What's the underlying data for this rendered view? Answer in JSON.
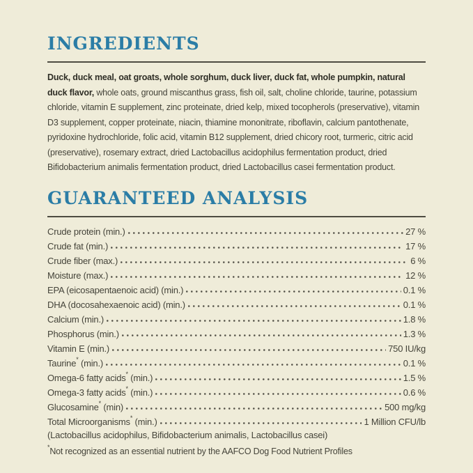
{
  "page": {
    "background_color": "#efecd9",
    "accent_color": "#2b7da6",
    "rule_color": "#4d4b41"
  },
  "ingredients": {
    "heading": "INGREDIENTS",
    "bold_text": "Duck, duck meal, oat groats, whole sorghum, duck liver, duck fat, whole pumpkin, natural duck flavor,",
    "regular_text": " whole oats, ground miscanthus grass, fish oil, salt, choline chloride, taurine, potassium chloride, vitamin E supplement, zinc proteinate, dried kelp, mixed tocopherols (preservative), vitamin D3 supplement, copper proteinate, niacin, thiamine mononitrate, riboflavin, calcium pantothenate, pyridoxine hydrochloride, folic acid, vitamin B12 supplement, dried chicory root, turmeric, citric acid (preservative), rosemary extract, dried Lactobacillus acidophilus fermentation product, dried Bifidobacterium animalis fermentation product, dried Lactobacillus casei fermentation product."
  },
  "analysis": {
    "heading": "GUARANTEED ANALYSIS",
    "rows": [
      {
        "name": "Crude protein",
        "sup": "",
        "suffix": " (min.)",
        "value": "27 %"
      },
      {
        "name": "Crude fat",
        "sup": "",
        "suffix": " (min.)",
        "value": "17 %"
      },
      {
        "name": "Crude fiber",
        "sup": "",
        "suffix": " (max.)",
        "value": "6 %"
      },
      {
        "name": "Moisture",
        "sup": "",
        "suffix": " (max.)",
        "value": "12 %"
      },
      {
        "name": "EPA (eicosapentaenoic acid)",
        "sup": "",
        "suffix": " (min.)",
        "value": "0.1 %"
      },
      {
        "name": "DHA (docosahexaenoic acid)",
        "sup": "",
        "suffix": " (min.)",
        "value": "0.1 %"
      },
      {
        "name": "Calcium",
        "sup": "",
        "suffix": " (min.)",
        "value": "1.8 %"
      },
      {
        "name": "Phosphorus",
        "sup": "",
        "suffix": " (min.)",
        "value": "1.3 %"
      },
      {
        "name": "Vitamin E",
        "sup": "",
        "suffix": " (min.)",
        "value": "750 IU/kg"
      },
      {
        "name": "Taurine",
        "sup": "*",
        "suffix": " (min.)",
        "value": "0.1 %"
      },
      {
        "name": "Omega-6 fatty acids",
        "sup": "*",
        "suffix": " (min.)",
        "value": "1.5 %"
      },
      {
        "name": "Omega-3 fatty acids",
        "sup": "*",
        "suffix": " (min.)",
        "value": "0.6 %"
      },
      {
        "name": "Glucosamine",
        "sup": "*",
        "suffix": " (min)",
        "value": "500 mg/kg"
      },
      {
        "name": "Total Microorganisms",
        "sup": "*",
        "suffix": " (min.)",
        "value": "1 Million CFU/lb"
      }
    ],
    "microorganisms_detail": "(Lactobacillus acidophilus, Bifidobacterium animalis, Lactobacillus casei)",
    "footnote_sup": "*",
    "footnote": "Not recognized as an essential nutrient by the AAFCO Dog Food Nutrient Profiles"
  }
}
